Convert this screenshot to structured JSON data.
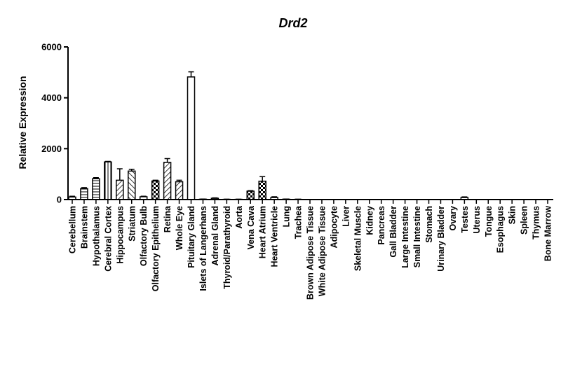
{
  "chart_data": {
    "type": "bar",
    "title": "Drd2",
    "ylabel": "Relative Expression",
    "xlabel": "",
    "ylim": [
      0,
      6000
    ],
    "yticks": [
      0,
      2000,
      4000,
      6000
    ],
    "categories": [
      "Cerebellum",
      "Brainstem",
      "Hypothalamus",
      "Cerebral Cortex",
      "Hippocampus",
      "Striatum",
      "Olfactory Bulb",
      "Olfactory Epithelium",
      "Retina",
      "Whole Eye",
      "Pituitary Gland",
      "Islets of Langerhans",
      "Adrenal Gland",
      "Thyroid/Parathyroid",
      "Aorta",
      "Vena Cava",
      "Heart Atrium",
      "Heart Ventricle",
      "Lung",
      "Trachea",
      "Brown Adipose Tissue",
      "White Adipose Tissue",
      "Adipocyte",
      "Liver",
      "Skeletal Muscle",
      "Kidney",
      "Pancreas",
      "Gall Bladder",
      "Large Intestine",
      "Small Intestine",
      "Stomach",
      "Urinary Bladder",
      "Ovary",
      "Testes",
      "Uterus",
      "Tongue",
      "Esophagus",
      "Skin",
      "Spleen",
      "Thymus",
      "Bone Marrow"
    ],
    "values": [
      100,
      430,
      820,
      1480,
      760,
      1120,
      110,
      730,
      1460,
      700,
      4820,
      15,
      50,
      10,
      10,
      330,
      720,
      80,
      15,
      10,
      5,
      5,
      5,
      5,
      5,
      5,
      5,
      5,
      5,
      5,
      5,
      5,
      5,
      80,
      5,
      5,
      5,
      5,
      5,
      5,
      5
    ],
    "errors": [
      30,
      40,
      40,
      20,
      450,
      70,
      20,
      30,
      150,
      60,
      200,
      5,
      15,
      5,
      5,
      20,
      180,
      30,
      5,
      5,
      0,
      0,
      0,
      0,
      0,
      0,
      0,
      0,
      0,
      0,
      0,
      0,
      0,
      25,
      0,
      0,
      0,
      0,
      0,
      0,
      0
    ],
    "patterns": [
      "open",
      "hlines",
      "hlines",
      "vlines",
      "dlines",
      "dlines2",
      "open",
      "checker",
      "dlines",
      "dlines",
      "open",
      "open",
      "open",
      "open",
      "open",
      "checker",
      "checker",
      "open",
      "open",
      "open",
      "open",
      "open",
      "open",
      "open",
      "open",
      "open",
      "open",
      "open",
      "open",
      "open",
      "open",
      "open",
      "open",
      "open",
      "open",
      "open",
      "open",
      "open",
      "open",
      "open",
      "open"
    ],
    "grid": false,
    "legend": "none"
  }
}
